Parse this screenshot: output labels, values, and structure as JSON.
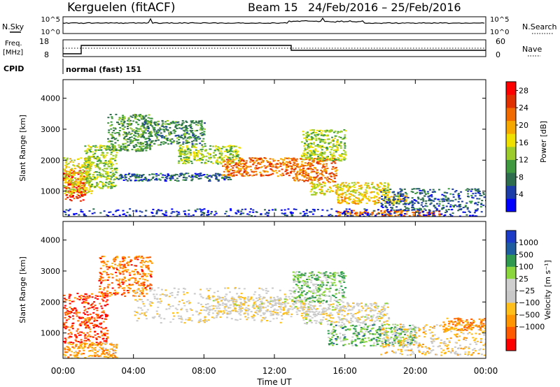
{
  "header": {
    "site": "Kerguelen (fitACF)",
    "beam": "Beam 15",
    "dates": "24/Feb/2016 – 25/Feb/2016"
  },
  "top_panels": {
    "nsky": {
      "label": "N.Sky",
      "left_ticks": [
        "10^5",
        "10^0"
      ],
      "right_label": "N.Search",
      "right_ticks": [
        "10^5",
        "10^0"
      ]
    },
    "freq": {
      "label_line1": "Freq.",
      "label_line2": "[MHz]",
      "left_ticks": [
        "18",
        "8"
      ],
      "right_label": "Nave",
      "right_ticks": [
        "60",
        "0"
      ]
    },
    "cpid": {
      "label": "CPID",
      "value": "normal (fast) 151"
    }
  },
  "x_axis": {
    "label": "Time UT",
    "ticks": [
      "00:00",
      "04:00",
      "08:00",
      "12:00",
      "16:00",
      "20:00",
      "00:00"
    ]
  },
  "colors": {
    "power": [
      "#0000ff",
      "#1c3ca8",
      "#2f6d4f",
      "#3f9a3f",
      "#9ccc2c",
      "#f0e000",
      "#f7a800",
      "#f06a00",
      "#e03000",
      "#ff0000"
    ],
    "velocity": [
      "#ff0000",
      "#ff5a00",
      "#ff9500",
      "#ffbf1a",
      "#c8c8c8",
      "#cfcfcf",
      "#8bd63c",
      "#2f9a4f",
      "#1e5ea0",
      "#1c3cc8"
    ]
  },
  "chart_data": [
    {
      "type": "heatmap",
      "name": "power",
      "ylabel": "Slant Range [km]",
      "yticks": [
        1000,
        2000,
        3000,
        4000
      ],
      "ylim": [
        180,
        4600
      ],
      "xlim": [
        0,
        24
      ],
      "colorbar": {
        "label": "Power [dB]",
        "ticks": [
          "4",
          "8",
          "12",
          "16",
          "20",
          "24",
          "28"
        ],
        "range": [
          0,
          30
        ]
      },
      "regions": [
        {
          "t0": 0.0,
          "t1": 1.2,
          "r0": 700,
          "r1": 1700,
          "level": 0.9
        },
        {
          "t0": 0.0,
          "t1": 1.6,
          "r0": 900,
          "r1": 2100,
          "level": 0.55
        },
        {
          "t0": 1.2,
          "t1": 3.0,
          "r0": 1100,
          "r1": 2500,
          "level": 0.45
        },
        {
          "t0": 2.5,
          "t1": 5.0,
          "r0": 2300,
          "r1": 3500,
          "level": 0.35
        },
        {
          "t0": 3.0,
          "t1": 9.5,
          "r0": 1350,
          "r1": 1600,
          "level": 0.2
        },
        {
          "t0": 4.5,
          "t1": 8.0,
          "r0": 2500,
          "r1": 3300,
          "level": 0.3
        },
        {
          "t0": 6.5,
          "t1": 10.0,
          "r0": 1900,
          "r1": 2500,
          "level": 0.45
        },
        {
          "t0": 9.0,
          "t1": 13.0,
          "r0": 1500,
          "r1": 2100,
          "level": 0.75
        },
        {
          "t0": 13.0,
          "t1": 15.5,
          "r0": 1300,
          "r1": 2100,
          "level": 0.75
        },
        {
          "t0": 13.5,
          "t1": 16.0,
          "r0": 2000,
          "r1": 3000,
          "level": 0.45
        },
        {
          "t0": 14.0,
          "t1": 18.5,
          "r0": 900,
          "r1": 1300,
          "level": 0.55
        },
        {
          "t0": 15.5,
          "t1": 19.5,
          "r0": 600,
          "r1": 900,
          "level": 0.6
        },
        {
          "t0": 15.5,
          "t1": 21.5,
          "r0": 200,
          "r1": 400,
          "level": 0.75
        },
        {
          "t0": 18.0,
          "t1": 24.0,
          "r0": 400,
          "r1": 1100,
          "level": 0.2
        },
        {
          "t0": 0.0,
          "t1": 24.0,
          "r0": 180,
          "r1": 450,
          "level": 0.12
        }
      ]
    },
    {
      "type": "heatmap",
      "name": "velocity",
      "ylabel": "Slant Range [km]",
      "yticks": [
        1000,
        2000,
        3000,
        4000
      ],
      "ylim": [
        180,
        4600
      ],
      "xlim": [
        0,
        24
      ],
      "colorbar": {
        "label": "Velocity [m s⁻¹]",
        "ticks": [
          "1000",
          "500",
          "100",
          "25",
          "−25",
          "−100",
          "−500",
          "−1000"
        ],
        "range": [
          -1000,
          1000
        ]
      },
      "regions": [
        {
          "t0": 0.0,
          "t1": 2.5,
          "r0": 700,
          "r1": 2300,
          "level": 0.12
        },
        {
          "t0": 2.0,
          "t1": 5.0,
          "r0": 2200,
          "r1": 3500,
          "level": 0.2
        },
        {
          "t0": 0.0,
          "t1": 3.0,
          "r0": 200,
          "r1": 700,
          "level": 0.3
        },
        {
          "t0": 4.0,
          "t1": 13.0,
          "r0": 1350,
          "r1": 2500,
          "level": 0.45
        },
        {
          "t0": 8.0,
          "t1": 14.0,
          "r0": 1600,
          "r1": 2200,
          "level": 0.47
        },
        {
          "t0": 13.0,
          "t1": 16.0,
          "r0": 2000,
          "r1": 3000,
          "level": 0.65
        },
        {
          "t0": 13.5,
          "t1": 18.5,
          "r0": 1300,
          "r1": 2000,
          "level": 0.48
        },
        {
          "t0": 15.0,
          "t1": 20.0,
          "r0": 600,
          "r1": 1300,
          "level": 0.68
        },
        {
          "t0": 18.0,
          "t1": 24.0,
          "r0": 300,
          "r1": 1300,
          "level": 0.4
        },
        {
          "t0": 21.5,
          "t1": 24.0,
          "r0": 1100,
          "r1": 1500,
          "level": 0.25
        }
      ]
    }
  ]
}
